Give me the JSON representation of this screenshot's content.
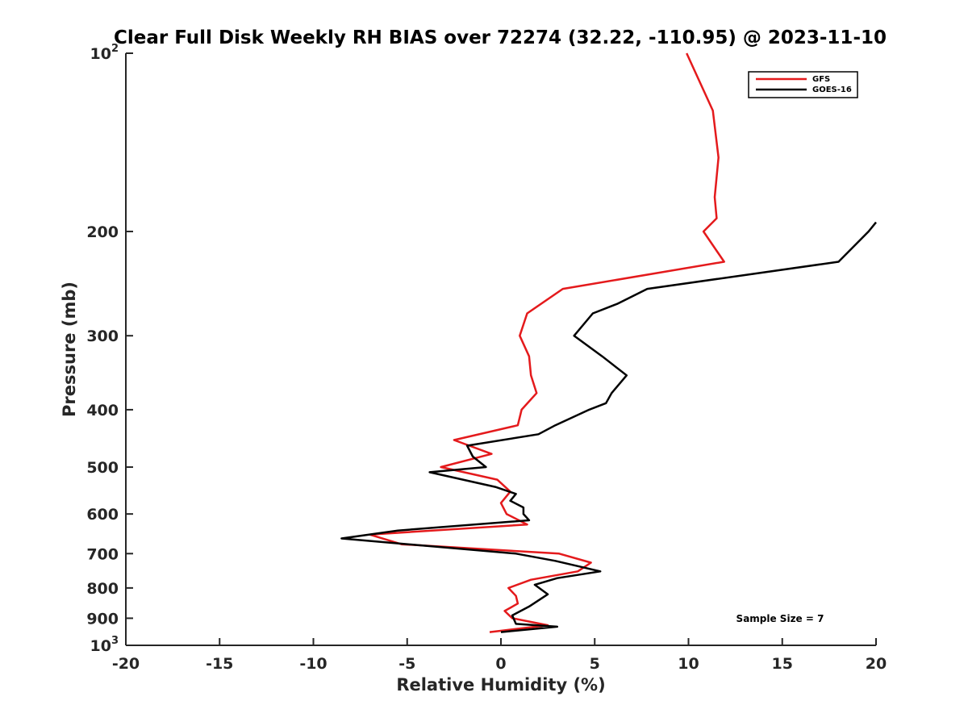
{
  "chart_data": {
    "type": "line",
    "title": "Clear Full Disk Weekly RH BIAS over 72274 (32.22, -110.95) @ 2023-11-10",
    "xlabel": "Relative Humidity (%)",
    "ylabel": "Pressure (mb)",
    "xlim": [
      -20,
      20
    ],
    "ylim": [
      100,
      1000
    ],
    "y_scale": "log",
    "y_reversed": true,
    "grid": false,
    "legend_position": "top-right",
    "annotation": "Sample Size = 7",
    "x_ticks": [
      "-20",
      "-15",
      "-10",
      "-5",
      "0",
      "5",
      "10",
      "15",
      "20"
    ],
    "y_ticks": [
      {
        "value": 100,
        "base": "10",
        "exp": "2"
      },
      {
        "value": 200,
        "label": "200"
      },
      {
        "value": 300,
        "label": "300"
      },
      {
        "value": 400,
        "label": "400"
      },
      {
        "value": 500,
        "label": "500"
      },
      {
        "value": 600,
        "label": "600"
      },
      {
        "value": 700,
        "label": "700"
      },
      {
        "value": 800,
        "label": "800"
      },
      {
        "value": 900,
        "label": "900"
      },
      {
        "value": 1000,
        "base": "10",
        "exp": "3"
      }
    ],
    "series": [
      {
        "name": "GFS",
        "color": "#e41a1c",
        "points": [
          {
            "x": 9.9,
            "p": 100
          },
          {
            "x": 11.3,
            "p": 125
          },
          {
            "x": 11.6,
            "p": 150
          },
          {
            "x": 11.4,
            "p": 175
          },
          {
            "x": 11.5,
            "p": 190
          },
          {
            "x": 10.8,
            "p": 200
          },
          {
            "x": 11.9,
            "p": 225
          },
          {
            "x": 3.3,
            "p": 250
          },
          {
            "x": 1.4,
            "p": 275
          },
          {
            "x": 1.0,
            "p": 300
          },
          {
            "x": 1.5,
            "p": 325
          },
          {
            "x": 1.6,
            "p": 350
          },
          {
            "x": 1.9,
            "p": 375
          },
          {
            "x": 1.1,
            "p": 400
          },
          {
            "x": 0.9,
            "p": 425
          },
          {
            "x": -2.5,
            "p": 450
          },
          {
            "x": -0.5,
            "p": 475
          },
          {
            "x": -3.2,
            "p": 500
          },
          {
            "x": -0.2,
            "p": 525
          },
          {
            "x": 0.5,
            "p": 550
          },
          {
            "x": 0.0,
            "p": 575
          },
          {
            "x": 0.3,
            "p": 600
          },
          {
            "x": 1.4,
            "p": 625
          },
          {
            "x": -7.0,
            "p": 650
          },
          {
            "x": -5.3,
            "p": 675
          },
          {
            "x": 3.1,
            "p": 700
          },
          {
            "x": 4.8,
            "p": 725
          },
          {
            "x": 4.1,
            "p": 750
          },
          {
            "x": 1.6,
            "p": 775
          },
          {
            "x": 0.4,
            "p": 800
          },
          {
            "x": 0.8,
            "p": 825
          },
          {
            "x": 0.9,
            "p": 850
          },
          {
            "x": 0.2,
            "p": 875
          },
          {
            "x": 0.6,
            "p": 900
          },
          {
            "x": 2.5,
            "p": 925
          },
          {
            "x": -0.6,
            "p": 950
          }
        ]
      },
      {
        "name": "GOES-16",
        "color": "#000000",
        "points": [
          {
            "x": 20.0,
            "p": 193
          },
          {
            "x": 19.6,
            "p": 200
          },
          {
            "x": 18.0,
            "p": 225
          },
          {
            "x": 7.8,
            "p": 250
          },
          {
            "x": 6.2,
            "p": 265
          },
          {
            "x": 4.9,
            "p": 275
          },
          {
            "x": 3.9,
            "p": 300
          },
          {
            "x": 5.4,
            "p": 325
          },
          {
            "x": 6.7,
            "p": 350
          },
          {
            "x": 5.9,
            "p": 375
          },
          {
            "x": 5.6,
            "p": 390
          },
          {
            "x": 4.7,
            "p": 400
          },
          {
            "x": 2.9,
            "p": 425
          },
          {
            "x": 2.0,
            "p": 440
          },
          {
            "x": -1.8,
            "p": 460
          },
          {
            "x": -1.5,
            "p": 480
          },
          {
            "x": -0.8,
            "p": 500
          },
          {
            "x": -3.8,
            "p": 510
          },
          {
            "x": -0.3,
            "p": 540
          },
          {
            "x": 0.8,
            "p": 555
          },
          {
            "x": 0.5,
            "p": 570
          },
          {
            "x": 1.2,
            "p": 585
          },
          {
            "x": 1.2,
            "p": 600
          },
          {
            "x": 1.5,
            "p": 615
          },
          {
            "x": -5.5,
            "p": 640
          },
          {
            "x": -8.5,
            "p": 660
          },
          {
            "x": 0.8,
            "p": 700
          },
          {
            "x": 2.9,
            "p": 720
          },
          {
            "x": 5.3,
            "p": 750
          },
          {
            "x": 3.0,
            "p": 770
          },
          {
            "x": 1.8,
            "p": 790
          },
          {
            "x": 2.5,
            "p": 820
          },
          {
            "x": 1.5,
            "p": 860
          },
          {
            "x": 0.6,
            "p": 890
          },
          {
            "x": 0.8,
            "p": 920
          },
          {
            "x": 3.0,
            "p": 930
          },
          {
            "x": 0.0,
            "p": 950
          }
        ]
      }
    ]
  }
}
